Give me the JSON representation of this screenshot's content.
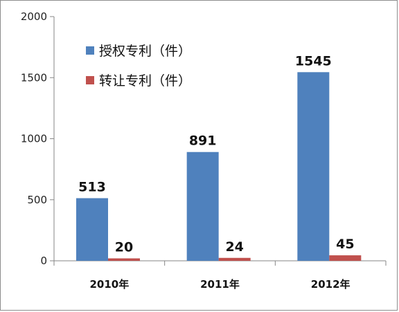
{
  "chart_data": {
    "type": "bar",
    "categories": [
      "2010年",
      "2011年",
      "2012年"
    ],
    "series": [
      {
        "name": "授权专利（件）",
        "values": [
          513,
          891,
          1545
        ],
        "color": "#4f81bd"
      },
      {
        "name": "转让专利（件）",
        "values": [
          20,
          24,
          45
        ],
        "color": "#c0504d"
      }
    ],
    "ylim": [
      0,
      2000
    ],
    "yticks": [
      0,
      500,
      1000,
      1500,
      2000
    ],
    "grid": false,
    "legend_position": "top-left",
    "data_labels": true
  }
}
